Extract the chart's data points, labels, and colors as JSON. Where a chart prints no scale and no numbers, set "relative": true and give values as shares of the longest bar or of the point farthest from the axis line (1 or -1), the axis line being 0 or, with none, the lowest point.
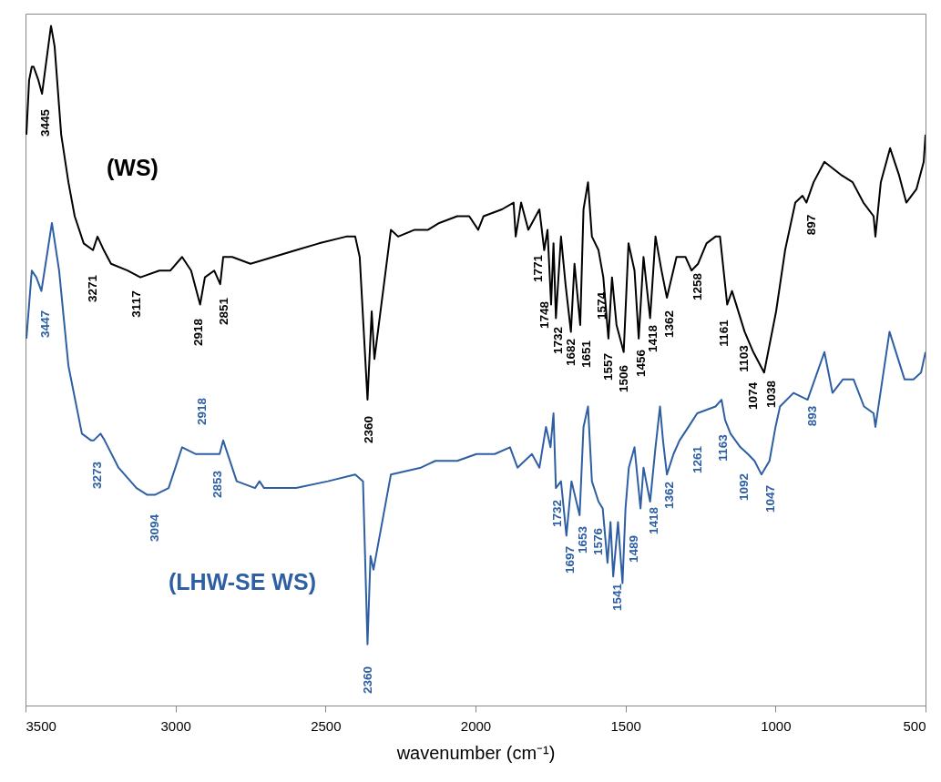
{
  "chart_data": {
    "type": "line",
    "relative": true,
    "xlabel": "wavenumber (cm⁻¹)",
    "xlim": [
      3500,
      500
    ],
    "xticks": [
      3500,
      3000,
      2500,
      2000,
      1500,
      1000,
      500
    ],
    "series": [
      {
        "name": "(WS)",
        "color": "#000000",
        "x": [
          3497,
          3488,
          3479,
          3473,
          3457,
          3445,
          3433,
          3415,
          3403,
          3381,
          3357,
          3336,
          3306,
          3275,
          3260,
          3239,
          3215,
          3160,
          3117,
          3054,
          3017,
          2978,
          2948,
          2918,
          2902,
          2871,
          2851,
          2841,
          2811,
          2750,
          2674,
          2598,
          2522,
          2431,
          2401,
          2386,
          2360,
          2346,
          2337,
          2282,
          2258,
          2203,
          2158,
          2121,
          2061,
          2021,
          1991,
          1973,
          1912,
          1873,
          1866,
          1848,
          1824,
          1787,
          1771,
          1760,
          1748,
          1740,
          1732,
          1715,
          1700,
          1682,
          1670,
          1651,
          1640,
          1625,
          1612,
          1590,
          1574,
          1557,
          1545,
          1530,
          1506,
          1490,
          1470,
          1456,
          1440,
          1418,
          1400,
          1380,
          1362,
          1330,
          1300,
          1280,
          1258,
          1230,
          1200,
          1185,
          1161,
          1145,
          1103,
          1074,
          1038,
          998,
          968,
          934,
          910,
          897,
          873,
          837,
          779,
          743,
          707,
          673,
          667,
          649,
          618,
          588,
          564,
          530,
          506,
          500
        ],
        "values": [
          0.84,
          0.92,
          0.94,
          0.94,
          0.92,
          0.9,
          0.94,
          1,
          0.97,
          0.84,
          0.77,
          0.72,
          0.68,
          0.67,
          0.69,
          0.67,
          0.65,
          0.64,
          0.63,
          0.64,
          0.64,
          0.66,
          0.64,
          0.59,
          0.63,
          0.64,
          0.62,
          0.66,
          0.66,
          0.65,
          0.66,
          0.67,
          0.68,
          0.69,
          0.69,
          0.66,
          0.45,
          0.58,
          0.51,
          0.7,
          0.69,
          0.7,
          0.7,
          0.71,
          0.72,
          0.72,
          0.7,
          0.72,
          0.73,
          0.74,
          0.69,
          0.74,
          0.7,
          0.73,
          0.67,
          0.7,
          0.59,
          0.68,
          0.57,
          0.69,
          0.62,
          0.55,
          0.65,
          0.56,
          0.73,
          0.77,
          0.69,
          0.67,
          0.63,
          0.54,
          0.63,
          0.56,
          0.52,
          0.68,
          0.64,
          0.54,
          0.66,
          0.57,
          0.69,
          0.64,
          0.6,
          0.66,
          0.66,
          0.64,
          0.65,
          0.68,
          0.69,
          0.69,
          0.59,
          0.61,
          0.55,
          0.52,
          0.49,
          0.58,
          0.67,
          0.74,
          0.75,
          0.74,
          0.77,
          0.8,
          0.78,
          0.77,
          0.74,
          0.72,
          0.69,
          0.77,
          0.82,
          0.78,
          0.74,
          0.76,
          0.8,
          0.84
        ]
      },
      {
        "name": "(LHW-SE WS)",
        "color": "#2e5fa3",
        "x": [
          3497,
          3479,
          3464,
          3447,
          3412,
          3388,
          3357,
          3312,
          3281,
          3273,
          3250,
          3236,
          3190,
          3130,
          3094,
          3069,
          3023,
          2978,
          2932,
          2918,
          2865,
          2853,
          2841,
          2796,
          2735,
          2720,
          2705,
          2598,
          2492,
          2401,
          2375,
          2360,
          2350,
          2340,
          2282,
          2182,
          2134,
          2061,
          1997,
          1936,
          1885,
          1860,
          1812,
          1787,
          1765,
          1750,
          1740,
          1732,
          1715,
          1697,
          1680,
          1653,
          1640,
          1625,
          1612,
          1590,
          1576,
          1560,
          1550,
          1541,
          1525,
          1510,
          1500,
          1489,
          1470,
          1450,
          1440,
          1418,
          1400,
          1385,
          1375,
          1362,
          1340,
          1320,
          1290,
          1261,
          1200,
          1180,
          1168,
          1150,
          1117,
          1092,
          1070,
          1047,
          1020,
          1000,
          985,
          940,
          893,
          837,
          810,
          775,
          740,
          705,
          673,
          667,
          620,
          570,
          540,
          515,
          500
        ],
        "values": [
          0.54,
          0.64,
          0.63,
          0.61,
          0.71,
          0.64,
          0.5,
          0.4,
          0.39,
          0.39,
          0.4,
          0.39,
          0.35,
          0.32,
          0.31,
          0.31,
          0.32,
          0.38,
          0.37,
          0.37,
          0.37,
          0.37,
          0.39,
          0.33,
          0.32,
          0.33,
          0.32,
          0.32,
          0.33,
          0.34,
          0.33,
          0.09,
          0.22,
          0.2,
          0.34,
          0.35,
          0.36,
          0.36,
          0.37,
          0.37,
          0.38,
          0.35,
          0.37,
          0.35,
          0.41,
          0.38,
          0.43,
          0.32,
          0.33,
          0.25,
          0.33,
          0.28,
          0.41,
          0.44,
          0.33,
          0.3,
          0.29,
          0.21,
          0.27,
          0.19,
          0.27,
          0.18,
          0.29,
          0.35,
          0.38,
          0.29,
          0.35,
          0.3,
          0.38,
          0.44,
          0.39,
          0.34,
          0.37,
          0.39,
          0.41,
          0.43,
          0.44,
          0.45,
          0.42,
          0.4,
          0.38,
          0.37,
          0.36,
          0.34,
          0.36,
          0.41,
          0.44,
          0.46,
          0.45,
          0.52,
          0.46,
          0.48,
          0.48,
          0.44,
          0.43,
          0.41,
          0.55,
          0.48,
          0.48,
          0.49,
          0.52
        ]
      }
    ],
    "annotations": [
      "3445",
      "3271",
      "3117",
      "2918",
      "2851",
      "2360",
      "1771",
      "1748",
      "1732",
      "1682",
      "1651",
      "1574",
      "1557",
      "1506",
      "1456",
      "1418",
      "1362",
      "1258",
      "1161",
      "1103",
      "1074",
      "1038",
      "897",
      "3447",
      "3273",
      "3094",
      "2918",
      "2853",
      "2360",
      "1732",
      "1697",
      "1653",
      "1576",
      "1541",
      "1489",
      "1418",
      "1362",
      "1261",
      "1163",
      "1092",
      "1047",
      "893"
    ]
  }
}
